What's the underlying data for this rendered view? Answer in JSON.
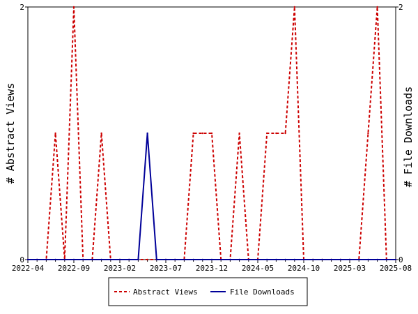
{
  "chart_data": {
    "type": "line",
    "x": [
      "2022-04",
      "2022-05",
      "2022-06",
      "2022-07",
      "2022-08",
      "2022-09",
      "2022-10",
      "2022-11",
      "2022-12",
      "2023-01",
      "2023-02",
      "2023-03",
      "2023-04",
      "2023-05",
      "2023-06",
      "2023-07",
      "2023-08",
      "2023-09",
      "2023-10",
      "2023-11",
      "2023-12",
      "2024-01",
      "2024-02",
      "2024-03",
      "2024-04",
      "2024-05",
      "2024-06",
      "2024-07",
      "2024-08",
      "2024-09",
      "2024-10",
      "2024-11",
      "2024-12",
      "2025-01",
      "2025-02",
      "2025-03",
      "2025-04",
      "2025-05",
      "2025-06",
      "2025-07",
      "2025-08"
    ],
    "series": [
      {
        "name": "Abstract Views",
        "color": "#cc0000",
        "style": "dashed",
        "values": [
          0,
          0,
          0,
          1,
          0,
          2,
          0,
          0,
          1,
          0,
          0,
          0,
          0,
          0,
          0,
          0,
          0,
          0,
          1,
          1,
          1,
          0,
          0,
          1,
          0,
          0,
          1,
          1,
          1,
          2,
          0,
          0,
          0,
          0,
          0,
          0,
          0,
          1,
          2,
          0,
          0
        ]
      },
      {
        "name": "File Downloads",
        "color": "#000099",
        "style": "solid",
        "values": [
          0,
          0,
          0,
          0,
          0,
          0,
          0,
          0,
          0,
          0,
          0,
          0,
          0,
          1,
          0,
          0,
          0,
          0,
          0,
          0,
          0,
          0,
          0,
          0,
          0,
          0,
          0,
          0,
          0,
          0,
          0,
          0,
          0,
          0,
          0,
          0,
          0,
          0,
          0,
          0,
          0
        ]
      }
    ],
    "x_tick_labels": [
      "2022-04",
      "2022-09",
      "2023-02",
      "2023-07",
      "2023-12",
      "2024-05",
      "2024-10",
      "2025-03",
      "2025-08"
    ],
    "ylabel": "# Abstract Views",
    "y2label": "# File Downloads",
    "y_ticks": [
      "0",
      "2"
    ],
    "y2_ticks": [
      "0",
      "2"
    ],
    "ylim": [
      0,
      2
    ],
    "y2lim": [
      0,
      2
    ],
    "grid": false,
    "legend_placement": "bottom"
  }
}
